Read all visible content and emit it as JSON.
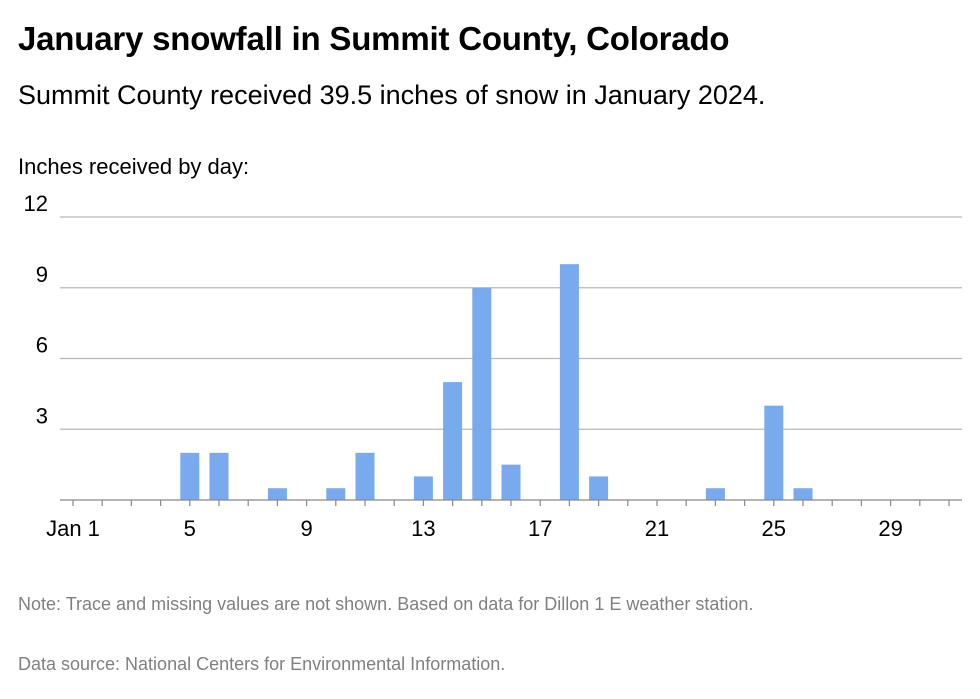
{
  "header": {
    "title": "January snowfall in Summit County, Colorado",
    "subtitle": "Summit County received 39.5 inches of snow in January 2024.",
    "axis_caption": "Inches received by day:"
  },
  "footer": {
    "note": "Note: Trace and missing values are not shown. Based on data for Dillon 1 E weather station.",
    "source": "Data source: National Centers for Environmental Information."
  },
  "chart_data": {
    "type": "bar",
    "title": "January snowfall in Summit County, Colorado",
    "subtitle": "Summit County received 39.5 inches of snow in January 2024.",
    "xlabel": "",
    "ylabel": "Inches received by day:",
    "x": [
      1,
      2,
      3,
      4,
      5,
      6,
      7,
      8,
      9,
      10,
      11,
      12,
      13,
      14,
      15,
      16,
      17,
      18,
      19,
      20,
      21,
      22,
      23,
      24,
      25,
      26,
      27,
      28,
      29,
      30,
      31
    ],
    "values": [
      0,
      0,
      0,
      0,
      2,
      2,
      0,
      0.5,
      0,
      0.5,
      2,
      0,
      1,
      5,
      9,
      1.5,
      0,
      10,
      1,
      0,
      0,
      0,
      0.5,
      0,
      4,
      0.5,
      0,
      0,
      0,
      0,
      0
    ],
    "x_tick_values": [
      1,
      5,
      9,
      13,
      17,
      21,
      25,
      29
    ],
    "x_tick_labels": [
      "Jan 1",
      "5",
      "9",
      "13",
      "17",
      "21",
      "25",
      "29"
    ],
    "y_ticks": [
      3,
      6,
      9,
      12
    ],
    "ylim": [
      0,
      12
    ],
    "grid": true,
    "bar_color": "#7aaaee",
    "grid_color": "#b8b8b8",
    "axis_color": "#888888"
  }
}
